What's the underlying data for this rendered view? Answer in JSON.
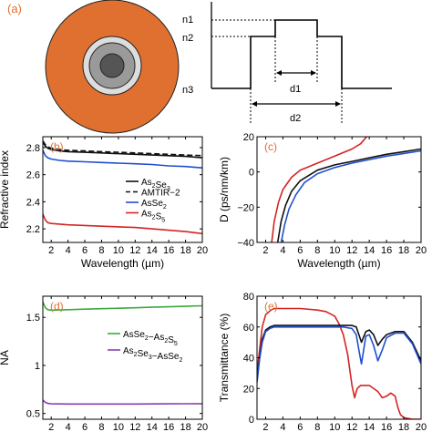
{
  "colors": {
    "orange": "#E07030",
    "black": "#111111",
    "blue": "#1F4FD0",
    "red": "#D42424",
    "green": "#3DAA3D",
    "purple": "#8A3FB0",
    "core_dark": "#555555",
    "core_mid": "#9A9A9A",
    "core_light": "#DDDDDD",
    "axes": "#000000"
  },
  "panel_a": {
    "label": "(a)",
    "index_labels": [
      "n1",
      "n2",
      "n3"
    ],
    "dimension_labels": [
      "d1",
      "d2"
    ]
  },
  "chart_data": [
    {
      "id": "b",
      "type": "line",
      "panel_label": "(b)",
      "ylabel": "Refractive index",
      "xlabel": "Wavelength (µm)",
      "xlim": [
        1,
        20
      ],
      "ylim": [
        2.1,
        2.88
      ],
      "xticks": [
        2,
        4,
        6,
        8,
        10,
        12,
        14,
        16,
        18,
        20
      ],
      "yticks": [
        2.2,
        2.4,
        2.6,
        2.8
      ],
      "legend_position": "right",
      "series": [
        {
          "name": "As2Se3",
          "color_key": "black",
          "dash": "",
          "x": [
            1.0,
            1.3,
            1.6,
            2,
            3,
            4,
            6,
            8,
            10,
            12,
            14,
            16,
            18,
            20
          ],
          "y": [
            2.84,
            2.81,
            2.795,
            2.785,
            2.775,
            2.77,
            2.765,
            2.76,
            2.755,
            2.75,
            2.745,
            2.74,
            2.735,
            2.725
          ]
        },
        {
          "name": "AMTIR-2",
          "color_key": "black",
          "dash": "6,3",
          "x": [
            1.0,
            1.3,
            1.6,
            2,
            3,
            4,
            6,
            8,
            10,
            12,
            14,
            16,
            18,
            20
          ],
          "y": [
            2.85,
            2.82,
            2.805,
            2.795,
            2.785,
            2.78,
            2.775,
            2.77,
            2.765,
            2.76,
            2.755,
            2.75,
            2.745,
            2.74
          ]
        },
        {
          "name": "AsSe2",
          "color_key": "blue",
          "dash": "",
          "x": [
            1.0,
            1.3,
            1.6,
            2,
            3,
            4,
            6,
            8,
            10,
            12,
            14,
            16,
            18,
            20
          ],
          "y": [
            2.78,
            2.74,
            2.725,
            2.715,
            2.705,
            2.7,
            2.695,
            2.69,
            2.685,
            2.68,
            2.675,
            2.665,
            2.66,
            2.65
          ]
        },
        {
          "name": "As2S5",
          "color_key": "red",
          "dash": "",
          "x": [
            1.0,
            1.3,
            1.6,
            2,
            3,
            4,
            6,
            8,
            10,
            12,
            14,
            16,
            18,
            20
          ],
          "y": [
            2.31,
            2.265,
            2.245,
            2.24,
            2.235,
            2.23,
            2.225,
            2.22,
            2.215,
            2.21,
            2.2,
            2.19,
            2.18,
            2.165
          ]
        }
      ],
      "legend_entries": [
        {
          "base": "As",
          "sub1": "2",
          "mid": "Se",
          "sub2": "3",
          "tail": "",
          "color_key": "black",
          "dash": ""
        },
        {
          "base": "AMTIR−2",
          "sub1": "",
          "mid": "",
          "sub2": "",
          "tail": "",
          "color_key": "black",
          "dash": "6,3"
        },
        {
          "base": "AsSe",
          "sub1": "2",
          "mid": "",
          "sub2": "",
          "tail": "",
          "color_key": "blue",
          "dash": ""
        },
        {
          "base": "As",
          "sub1": "2",
          "mid": "S",
          "sub2": "5",
          "tail": "",
          "color_key": "red",
          "dash": ""
        }
      ]
    },
    {
      "id": "c",
      "type": "line",
      "panel_label": "(c)",
      "ylabel": "D (ps/nm/km)",
      "xlabel": "Wavelength (µm)",
      "xlim": [
        1,
        20
      ],
      "ylim": [
        -40,
        20
      ],
      "xticks": [
        2,
        4,
        6,
        8,
        10,
        12,
        14,
        16,
        18,
        20
      ],
      "yticks": [
        -40,
        -20,
        0,
        20
      ],
      "series": [
        {
          "name": "",
          "color_key": "red",
          "x": [
            2.7,
            3.0,
            3.5,
            4,
            5,
            6,
            8,
            10,
            11,
            12,
            13,
            13.7
          ],
          "y": [
            -40,
            -28,
            -17,
            -10,
            -3,
            1,
            5,
            9,
            11,
            13,
            16,
            20
          ]
        },
        {
          "name": "",
          "color_key": "black",
          "x": [
            3.4,
            3.8,
            4.3,
            5,
            6,
            8,
            10,
            12,
            14,
            16,
            18,
            20
          ],
          "y": [
            -40,
            -28,
            -19,
            -11,
            -5,
            1,
            4,
            6,
            8,
            10,
            11.5,
            13
          ]
        },
        {
          "name": "",
          "color_key": "blue",
          "x": [
            3.8,
            4.2,
            4.7,
            5.5,
            6.5,
            8,
            10,
            12,
            14,
            16,
            18,
            20
          ],
          "y": [
            -40,
            -30,
            -21,
            -13,
            -6,
            -1,
            2.5,
            5,
            7,
            9,
            10.5,
            12
          ]
        }
      ]
    },
    {
      "id": "d",
      "type": "line",
      "panel_label": "(d)",
      "ylabel": "NA",
      "xlabel": "Wavelength (µm)",
      "xlim": [
        1,
        20
      ],
      "ylim": [
        0.44,
        1.72
      ],
      "xticks": [
        2,
        4,
        6,
        8,
        10,
        12,
        14,
        16,
        18,
        20
      ],
      "yticks": [
        0.5,
        1,
        1.5
      ],
      "legend_position": "right",
      "series": [
        {
          "name": "AsSe2-As2S5",
          "color_key": "green",
          "x": [
            1.0,
            1.3,
            1.6,
            2,
            4,
            6,
            8,
            10,
            12,
            14,
            16,
            18,
            20
          ],
          "y": [
            1.66,
            1.6,
            1.58,
            1.575,
            1.58,
            1.585,
            1.59,
            1.595,
            1.6,
            1.605,
            1.61,
            1.615,
            1.62
          ]
        },
        {
          "name": "As2Se3-AsSe2",
          "color_key": "purple",
          "x": [
            1.0,
            1.3,
            1.6,
            2,
            4,
            6,
            8,
            10,
            12,
            14,
            16,
            18,
            20
          ],
          "y": [
            0.64,
            0.615,
            0.605,
            0.6,
            0.598,
            0.598,
            0.598,
            0.598,
            0.598,
            0.599,
            0.6,
            0.601,
            0.602
          ]
        }
      ],
      "legend_entries": [
        {
          "base": "AsSe",
          "sub1": "2",
          "mid": "−As",
          "sub2": "2",
          "tail": "S",
          "sub3": "5",
          "color_key": "green"
        },
        {
          "base": "As",
          "sub1": "2",
          "mid": "Se",
          "sub2": "3",
          "tail": "−AsSe",
          "sub3": "2",
          "color_key": "purple"
        }
      ]
    },
    {
      "id": "e",
      "type": "line",
      "panel_label": "(e)",
      "ylabel": "Transmittance (%)",
      "xlabel": "Wavelength (µm)",
      "xlim": [
        1,
        20
      ],
      "ylim": [
        0,
        80
      ],
      "xticks": [
        2,
        4,
        6,
        8,
        10,
        12,
        14,
        16,
        18,
        20
      ],
      "yticks": [
        0,
        20,
        40,
        60,
        80
      ],
      "series": [
        {
          "name": "",
          "color_key": "red",
          "x": [
            1.0,
            1.3,
            1.6,
            2,
            2.6,
            3,
            4,
            6,
            8,
            9,
            10,
            10.5,
            11,
            11.5,
            12,
            12.3,
            12.6,
            13,
            14,
            15,
            15.5,
            16,
            16.5,
            17,
            17.3,
            17.6,
            18,
            19,
            20
          ],
          "y": [
            30,
            45,
            60,
            68,
            71,
            72,
            72,
            72,
            71,
            70,
            67,
            62,
            55,
            42,
            22,
            14,
            20,
            22,
            22,
            18,
            14,
            15,
            17,
            15,
            8,
            3,
            1,
            0,
            0
          ]
        },
        {
          "name": "",
          "color_key": "black",
          "x": [
            1.0,
            1.3,
            1.6,
            2,
            2.5,
            3,
            4,
            6,
            8,
            10,
            11,
            12,
            12.5,
            12.8,
            13.1,
            13.6,
            14,
            14.5,
            15,
            15.5,
            16,
            17,
            18,
            19,
            20
          ],
          "y": [
            25,
            40,
            52,
            58,
            60,
            61,
            61,
            61,
            61,
            61,
            61,
            61,
            60,
            55,
            50,
            57,
            58,
            55,
            48,
            52,
            55,
            57,
            57,
            50,
            38
          ]
        },
        {
          "name": "",
          "color_key": "blue",
          "x": [
            1.0,
            1.3,
            1.6,
            2,
            2.5,
            3,
            4,
            6,
            8,
            10,
            11,
            12,
            12.5,
            12.8,
            13.1,
            13.6,
            14,
            14.5,
            15,
            15.5,
            16,
            17,
            18,
            19,
            20
          ],
          "y": [
            24,
            39,
            50,
            57,
            59,
            60,
            60,
            60,
            60,
            60,
            60,
            59,
            55,
            45,
            36,
            54,
            55,
            48,
            38,
            45,
            53,
            56,
            56,
            49,
            36
          ]
        }
      ]
    }
  ]
}
